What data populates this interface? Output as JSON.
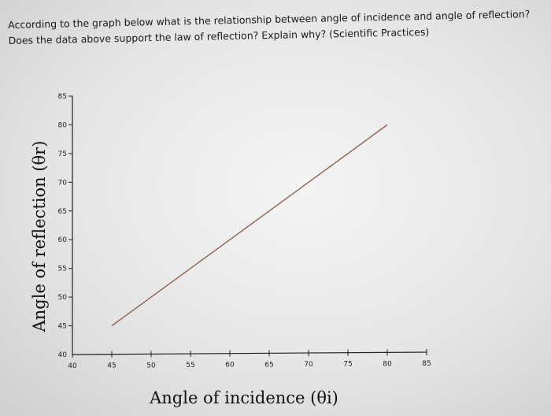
{
  "question": {
    "line1": "According to the graph below what is the relationship between angle of incidence and angle of reflection?",
    "line2": "Does the data above support the law of reflection? Explain why? (Scientific Practices)"
  },
  "chart_data": {
    "type": "line",
    "title": "",
    "xlabel": "Angle of incidence (θi)",
    "ylabel": "Angle of reflection (θr)",
    "xlim": [
      40,
      85
    ],
    "ylim": [
      40,
      85
    ],
    "xticks": [
      40,
      45,
      50,
      55,
      60,
      65,
      70,
      75,
      80,
      85
    ],
    "yticks": [
      40,
      45,
      50,
      55,
      60,
      65,
      70,
      75,
      80,
      85
    ],
    "grid": false,
    "series": [
      {
        "x": [
          45,
          80
        ],
        "y": [
          45,
          80
        ]
      }
    ],
    "colors": {
      "line": "#8a5a4a",
      "axis": "#222222"
    }
  }
}
